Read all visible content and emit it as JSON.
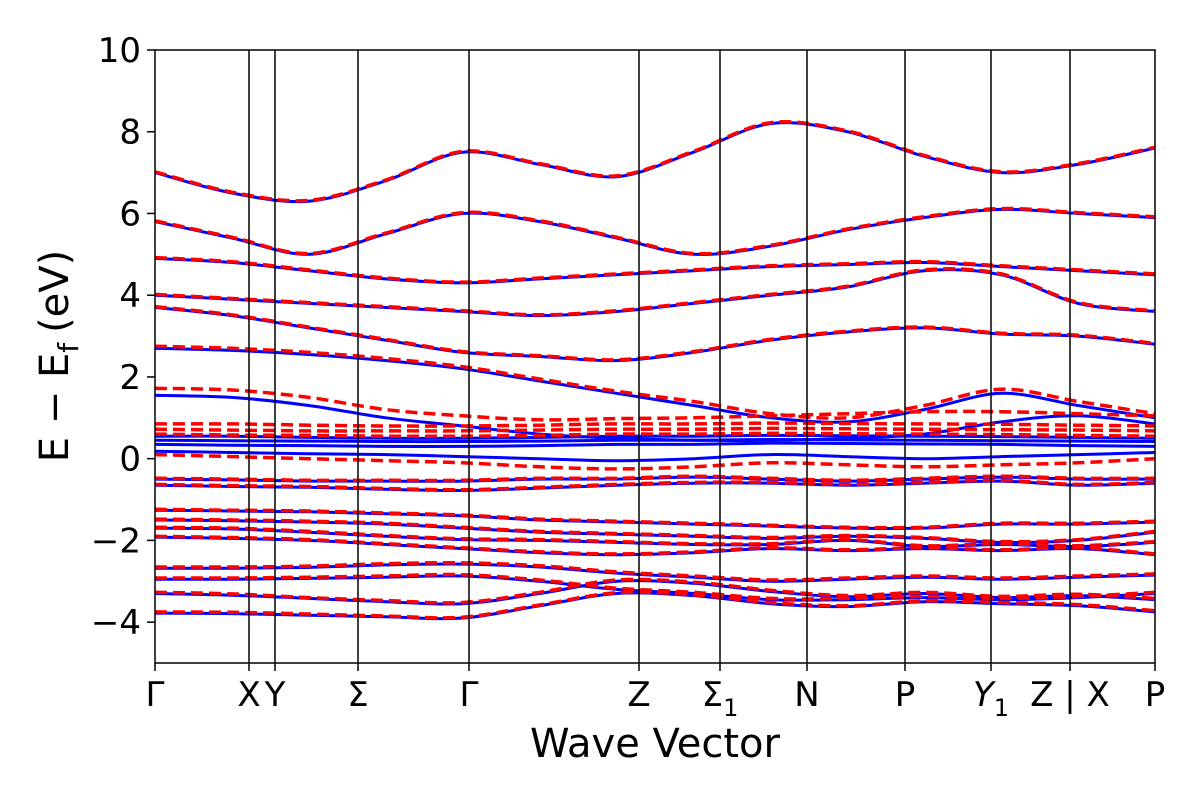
{
  "chart_data": {
    "type": "line",
    "xlabel": "Wave Vector",
    "ylabel": "E − E",
    "ylabel_subscript": "f",
    "ylabel_unit": "(eV)",
    "ylim": [
      -5,
      10
    ],
    "yticks": [
      {
        "value": -4,
        "label": "−4"
      },
      {
        "value": -2,
        "label": "−2"
      },
      {
        "value": 0,
        "label": "0"
      },
      {
        "value": 2,
        "label": "2"
      },
      {
        "value": 4,
        "label": "4"
      },
      {
        "value": 6,
        "label": "6"
      },
      {
        "value": 8,
        "label": "8"
      },
      {
        "value": 10,
        "label": "10"
      }
    ],
    "xlim": [
      0,
      1
    ],
    "kpoints": [
      {
        "x": 0.0,
        "label": "Γ"
      },
      {
        "x": 0.094,
        "label": "X"
      },
      {
        "x": 0.12,
        "label": "Y"
      },
      {
        "x": 0.203,
        "label": "Σ"
      },
      {
        "x": 0.314,
        "label": "Γ"
      },
      {
        "x": 0.484,
        "label": "Z"
      },
      {
        "x": 0.565,
        "label": "Σ",
        "subscript": "1"
      },
      {
        "x": 0.652,
        "label": "N"
      },
      {
        "x": 0.75,
        "label": "P"
      },
      {
        "x": 0.836,
        "label": "Y",
        "subscript": "1",
        "italic": true
      },
      {
        "x": 0.915,
        "label": "Z | X",
        "break": true
      },
      {
        "x": 1.0,
        "label": "P"
      }
    ],
    "grid": false,
    "legend": "none",
    "series": [
      {
        "style": "solid",
        "color": "#0000ff"
      },
      {
        "style": "dashed",
        "color": "#ff0000"
      }
    ],
    "bands_solid": [
      [
        -3.78,
        -3.79,
        -3.83,
        -3.87,
        -3.9,
        -3.6,
        -3.3,
        -3.35,
        -3.55,
        -3.62,
        -3.5,
        -3.55,
        -3.6,
        -3.75
      ],
      [
        -3.3,
        -3.34,
        -3.42,
        -3.5,
        -3.55,
        -3.3,
        -3.0,
        -3.05,
        -3.25,
        -3.38,
        -3.3,
        -3.4,
        -3.35,
        -3.45
      ],
      [
        -2.95,
        -2.95,
        -2.93,
        -2.9,
        -2.87,
        -3.0,
        -3.2,
        -3.3,
        -3.45,
        -3.45,
        -3.4,
        -3.45,
        -3.4,
        -3.3
      ],
      [
        -2.68,
        -2.68,
        -2.66,
        -2.6,
        -2.58,
        -2.65,
        -2.8,
        -2.9,
        -3.0,
        -2.95,
        -2.9,
        -2.95,
        -2.9,
        -2.85
      ],
      [
        -1.92,
        -1.95,
        -2.0,
        -2.1,
        -2.2,
        -2.3,
        -2.35,
        -2.3,
        -2.2,
        -2.25,
        -2.2,
        -2.25,
        -2.2,
        -2.35
      ],
      [
        -1.7,
        -1.72,
        -1.8,
        -1.9,
        -1.98,
        -2.0,
        -2.05,
        -2.1,
        -2.1,
        -2.0,
        -2.15,
        -2.1,
        -2.15,
        -2.05
      ],
      [
        -1.5,
        -1.52,
        -1.55,
        -1.6,
        -1.7,
        -1.8,
        -1.85,
        -1.9,
        -1.95,
        -1.9,
        -1.95,
        -2.05,
        -2.0,
        -1.8
      ],
      [
        -1.26,
        -1.28,
        -1.3,
        -1.35,
        -1.4,
        -1.5,
        -1.55,
        -1.6,
        -1.65,
        -1.7,
        -1.7,
        -1.6,
        -1.6,
        -1.55
      ],
      [
        -0.65,
        -0.68,
        -0.7,
        -0.75,
        -0.78,
        -0.72,
        -0.65,
        -0.6,
        -0.6,
        -0.65,
        -0.6,
        -0.55,
        -0.65,
        -0.6
      ],
      [
        -0.5,
        -0.52,
        -0.55,
        -0.55,
        -0.55,
        -0.5,
        -0.5,
        -0.45,
        -0.5,
        -0.55,
        -0.5,
        -0.45,
        -0.5,
        -0.5
      ],
      [
        0.18,
        0.15,
        0.12,
        0.1,
        0.05,
        0.0,
        -0.05,
        0.0,
        0.1,
        0.05,
        0.0,
        0.05,
        0.1,
        0.15
      ],
      [
        0.35,
        0.33,
        0.32,
        0.3,
        0.3,
        0.32,
        0.35,
        0.35,
        0.38,
        0.37,
        0.36,
        0.35,
        0.32,
        0.3
      ],
      [
        0.45,
        0.44,
        0.43,
        0.42,
        0.42,
        0.43,
        0.45,
        0.45,
        0.47,
        0.46,
        0.45,
        0.44,
        0.43,
        0.42
      ],
      [
        0.55,
        0.55,
        0.52,
        0.5,
        0.5,
        0.52,
        0.55,
        0.55,
        0.57,
        0.56,
        0.55,
        0.54,
        0.52,
        0.5
      ],
      [
        1.55,
        1.5,
        1.3,
        1.0,
        0.8,
        0.6,
        0.5,
        0.45,
        0.45,
        0.5,
        0.6,
        0.9,
        1.05,
        0.85
      ],
      [
        2.7,
        2.65,
        2.55,
        2.4,
        2.2,
        1.9,
        1.6,
        1.3,
        1.0,
        0.9,
        1.2,
        1.6,
        1.3,
        1.0
      ],
      [
        3.7,
        3.5,
        3.2,
        2.9,
        2.6,
        2.5,
        2.4,
        2.6,
        2.9,
        3.1,
        3.2,
        3.05,
        3.0,
        2.8
      ],
      [
        4.0,
        3.9,
        3.8,
        3.7,
        3.6,
        3.5,
        3.6,
        3.8,
        4.0,
        4.2,
        4.6,
        4.5,
        3.8,
        3.6
      ],
      [
        4.9,
        4.8,
        4.6,
        4.4,
        4.3,
        4.4,
        4.5,
        4.6,
        4.7,
        4.75,
        4.8,
        4.7,
        4.6,
        4.5
      ],
      [
        5.8,
        5.4,
        5.0,
        5.5,
        6.0,
        5.8,
        5.4,
        5.0,
        5.2,
        5.6,
        5.9,
        6.1,
        6.0,
        5.9
      ],
      [
        7.0,
        6.5,
        6.3,
        6.8,
        7.5,
        7.2,
        6.9,
        7.5,
        8.2,
        8.0,
        7.4,
        7.0,
        7.2,
        7.6
      ]
    ],
    "bands_dashed": [
      [
        -3.75,
        -3.76,
        -3.8,
        -3.85,
        -3.88,
        -3.58,
        -3.28,
        -3.33,
        -3.52,
        -3.6,
        -3.48,
        -3.52,
        -3.57,
        -3.72
      ],
      [
        -3.27,
        -3.31,
        -3.4,
        -3.47,
        -3.52,
        -3.27,
        -2.97,
        -3.02,
        -3.22,
        -3.35,
        -3.27,
        -3.37,
        -3.32,
        -3.42
      ],
      [
        -2.92,
        -2.92,
        -2.9,
        -2.87,
        -2.84,
        -2.97,
        -3.17,
        -3.27,
        -3.42,
        -3.42,
        -3.37,
        -3.42,
        -3.37,
        -3.27
      ],
      [
        -2.65,
        -2.65,
        -2.63,
        -2.57,
        -2.55,
        -2.62,
        -2.77,
        -2.87,
        -2.97,
        -2.92,
        -2.87,
        -2.92,
        -2.87,
        -2.82
      ],
      [
        -1.9,
        -1.93,
        -1.98,
        -2.08,
        -2.18,
        -2.28,
        -2.33,
        -2.28,
        -2.18,
        -2.23,
        -2.18,
        -2.23,
        -2.18,
        -2.33
      ],
      [
        -1.68,
        -1.7,
        -1.78,
        -1.88,
        -1.96,
        -1.98,
        -2.03,
        -2.08,
        -2.08,
        -1.98,
        -2.13,
        -2.08,
        -2.13,
        -2.03
      ],
      [
        -1.48,
        -1.5,
        -1.53,
        -1.58,
        -1.68,
        -1.78,
        -1.83,
        -1.88,
        -1.93,
        -1.88,
        -1.93,
        -2.03,
        -1.98,
        -1.78
      ],
      [
        -1.24,
        -1.26,
        -1.28,
        -1.33,
        -1.38,
        -1.48,
        -1.53,
        -1.58,
        -1.63,
        -1.68,
        -1.68,
        -1.58,
        -1.58,
        -1.53
      ],
      [
        -0.63,
        -0.66,
        -0.68,
        -0.73,
        -0.76,
        -0.7,
        -0.63,
        -0.58,
        -0.58,
        -0.63,
        -0.58,
        -0.53,
        -0.63,
        -0.58
      ],
      [
        -0.48,
        -0.5,
        -0.53,
        -0.53,
        -0.53,
        -0.48,
        -0.48,
        -0.43,
        -0.48,
        -0.53,
        -0.48,
        -0.43,
        -0.48,
        -0.48
      ],
      [
        0.1,
        0.05,
        0.0,
        -0.05,
        -0.1,
        -0.2,
        -0.25,
        -0.2,
        -0.1,
        -0.15,
        -0.2,
        -0.15,
        -0.1,
        0.0
      ],
      [
        0.6,
        0.58,
        0.57,
        0.55,
        0.55,
        0.57,
        0.6,
        0.6,
        0.62,
        0.61,
        0.6,
        0.59,
        0.57,
        0.55
      ],
      [
        0.72,
        0.7,
        0.68,
        0.68,
        0.68,
        0.7,
        0.72,
        0.72,
        0.74,
        0.73,
        0.72,
        0.71,
        0.7,
        0.68
      ],
      [
        0.85,
        0.85,
        0.82,
        0.8,
        0.8,
        0.82,
        0.85,
        0.85,
        0.87,
        0.86,
        0.85,
        0.84,
        0.82,
        0.8
      ],
      [
        1.72,
        1.68,
        1.5,
        1.2,
        1.05,
        0.95,
        0.98,
        1.0,
        1.05,
        1.1,
        1.15,
        1.15,
        1.1,
        1.05
      ],
      [
        2.75,
        2.7,
        2.6,
        2.45,
        2.25,
        1.95,
        1.65,
        1.4,
        1.1,
        1.0,
        1.3,
        1.7,
        1.4,
        1.1
      ],
      [
        3.72,
        3.52,
        3.22,
        2.92,
        2.62,
        2.52,
        2.42,
        2.62,
        2.92,
        3.12,
        3.22,
        3.07,
        3.02,
        2.82
      ],
      [
        4.02,
        3.92,
        3.82,
        3.72,
        3.62,
        3.52,
        3.62,
        3.82,
        4.02,
        4.22,
        4.62,
        4.52,
        3.82,
        3.62
      ],
      [
        4.92,
        4.82,
        4.62,
        4.42,
        4.32,
        4.42,
        4.52,
        4.62,
        4.72,
        4.77,
        4.82,
        4.72,
        4.62,
        4.52
      ],
      [
        5.82,
        5.42,
        5.02,
        5.52,
        6.02,
        5.82,
        5.42,
        5.02,
        5.22,
        5.62,
        5.92,
        6.12,
        6.02,
        5.92
      ],
      [
        7.02,
        6.52,
        6.32,
        6.82,
        7.52,
        7.22,
        6.92,
        7.52,
        8.22,
        8.02,
        7.42,
        7.02,
        7.22,
        7.62
      ]
    ]
  }
}
